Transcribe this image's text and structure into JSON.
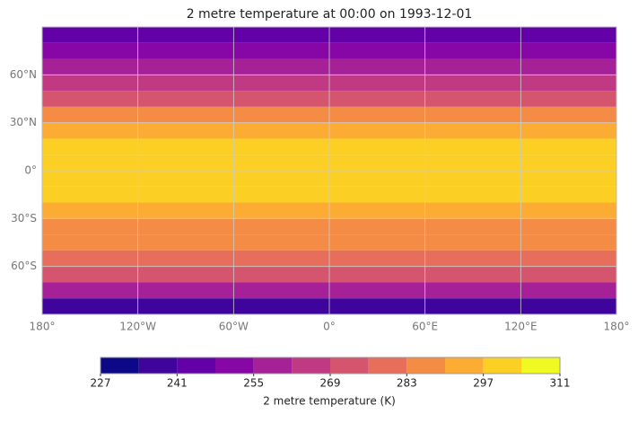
{
  "chart_data": {
    "type": "map",
    "title": "2 metre temperature at 00:00 on 1993-12-01",
    "xlim": [
      -180,
      180
    ],
    "ylim": [
      -90,
      90
    ],
    "xticks": [
      {
        "value": -180,
        "label": "180°"
      },
      {
        "value": -120,
        "label": "120°W"
      },
      {
        "value": -60,
        "label": "60°W"
      },
      {
        "value": 0,
        "label": "0°"
      },
      {
        "value": 60,
        "label": "60°E"
      },
      {
        "value": 120,
        "label": "120°E"
      },
      {
        "value": 180,
        "label": "180°"
      }
    ],
    "yticks": [
      {
        "value": 60,
        "label": "60°N"
      },
      {
        "value": 30,
        "label": "30°N"
      },
      {
        "value": 0,
        "label": "0°"
      },
      {
        "value": -30,
        "label": "30°S"
      },
      {
        "value": -60,
        "label": "60°S"
      }
    ],
    "grid": true,
    "field": {
      "lat_edges": [
        90,
        80,
        70,
        60,
        50,
        40,
        30,
        20,
        10,
        0,
        -10,
        -20,
        -30,
        -40,
        -50,
        -60,
        -70,
        -80,
        -90
      ],
      "values": [
        245,
        250,
        258,
        266,
        274,
        283,
        292,
        298,
        300,
        299,
        297,
        293,
        288,
        283,
        277,
        271,
        255,
        240
      ]
    },
    "colorbar": {
      "label": "2 metre temperature (K)",
      "levels": [
        227,
        234,
        241,
        248,
        255,
        262,
        269,
        276,
        283,
        290,
        297,
        304,
        311
      ],
      "ticks": [
        227,
        241,
        255,
        269,
        283,
        297,
        311
      ],
      "colors": [
        "#0d0887",
        "#3e049c",
        "#6300a7",
        "#8606a6",
        "#a62098",
        "#c03a83",
        "#d5546e",
        "#e76e5b",
        "#f58c46",
        "#fdac33",
        "#fccf25",
        "#f0f921"
      ]
    }
  }
}
